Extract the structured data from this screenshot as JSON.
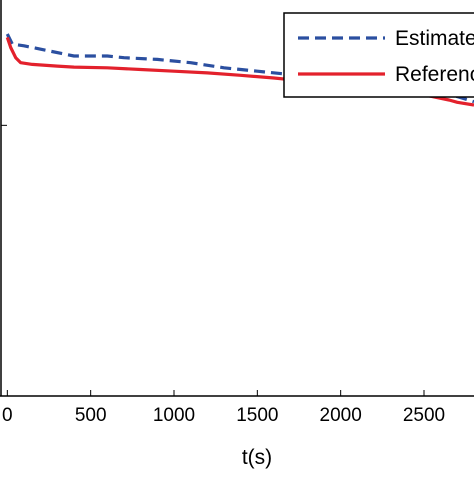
{
  "chart_data": {
    "type": "line",
    "title": "",
    "xlabel": "t(s)",
    "ylabel": "",
    "xlim": [
      -20,
      2800
    ],
    "ylim": [
      0,
      1.2
    ],
    "x_ticks": [
      0,
      500,
      1000,
      1500,
      2000,
      2500
    ],
    "x_tick_labels": [
      "0",
      "500",
      "1000",
      "1500",
      "2000",
      "2500"
    ],
    "y_ticks": [
      0.8
    ],
    "grid": false,
    "legend_position": "top-right",
    "series": [
      {
        "name": "Estimated",
        "color": "#2b4fa0",
        "style": "dashed",
        "x": [
          0,
          30,
          100,
          250,
          400,
          600,
          700,
          900,
          1100,
          1300,
          1500,
          1700,
          1900,
          2100,
          2300,
          2400,
          2500,
          2600,
          2700,
          2800
        ],
        "y": [
          1.07,
          1.04,
          1.035,
          1.02,
          1.005,
          1.005,
          1.0,
          0.995,
          0.985,
          0.97,
          0.96,
          0.95,
          0.94,
          0.93,
          0.92,
          0.915,
          0.905,
          0.895,
          0.885,
          0.87
        ]
      },
      {
        "name": "Reference",
        "color": "#e3212c",
        "style": "solid",
        "x": [
          0,
          20,
          50,
          80,
          150,
          300,
          400,
          600,
          800,
          1000,
          1200,
          1400,
          1600,
          1800,
          2000,
          2200,
          2350,
          2450,
          2550,
          2650,
          2700,
          2800
        ],
        "y": [
          1.06,
          1.03,
          1.0,
          0.985,
          0.98,
          0.975,
          0.972,
          0.97,
          0.965,
          0.96,
          0.955,
          0.948,
          0.94,
          0.93,
          0.92,
          0.91,
          0.9,
          0.895,
          0.885,
          0.875,
          0.868,
          0.86
        ]
      }
    ]
  }
}
